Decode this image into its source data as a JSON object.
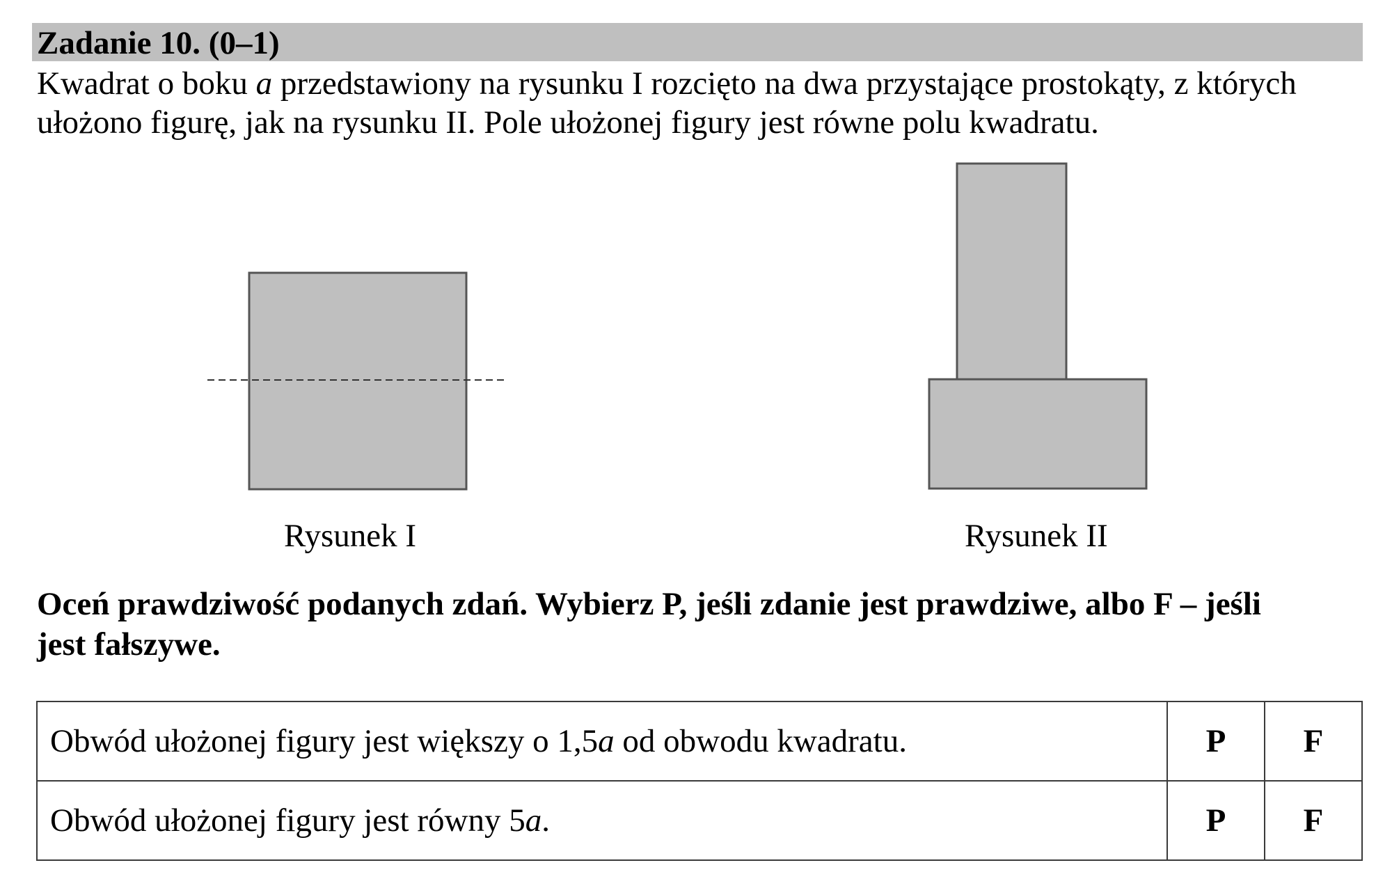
{
  "task": {
    "title": "Zadanie 10. (0–1)",
    "intro_line1_before": "Kwadrat o boku ",
    "intro_line1_var": "a",
    "intro_line1_after": " przedstawiony na rysunku I rozcięto na dwa przystające prostokąty, z których",
    "intro_line2": "ułożono figurę, jak na rysunku II. Pole ułożonej figury jest równe polu kwadratu."
  },
  "figures": {
    "fill_color": "#bfbfbf",
    "stroke_color": "#555555",
    "caption_1": "Rysunek I",
    "caption_2": "Rysunek II"
  },
  "instruction": {
    "line1": "Oceń prawdziwość podanych zdań. Wybierz P, jeśli zdanie jest prawdziwe, albo F – jeśli",
    "line2": "jest fałszywe."
  },
  "statements": [
    {
      "text_before": "Obwód ułożonej figury jest większy o 1,5",
      "var": "a",
      "text_after": " od obwodu kwadratu.",
      "true_label": "P",
      "false_label": "F"
    },
    {
      "text_before": "Obwód ułożonej figury jest równy 5",
      "var": "a",
      "text_after": ".",
      "true_label": "P",
      "false_label": "F"
    }
  ]
}
